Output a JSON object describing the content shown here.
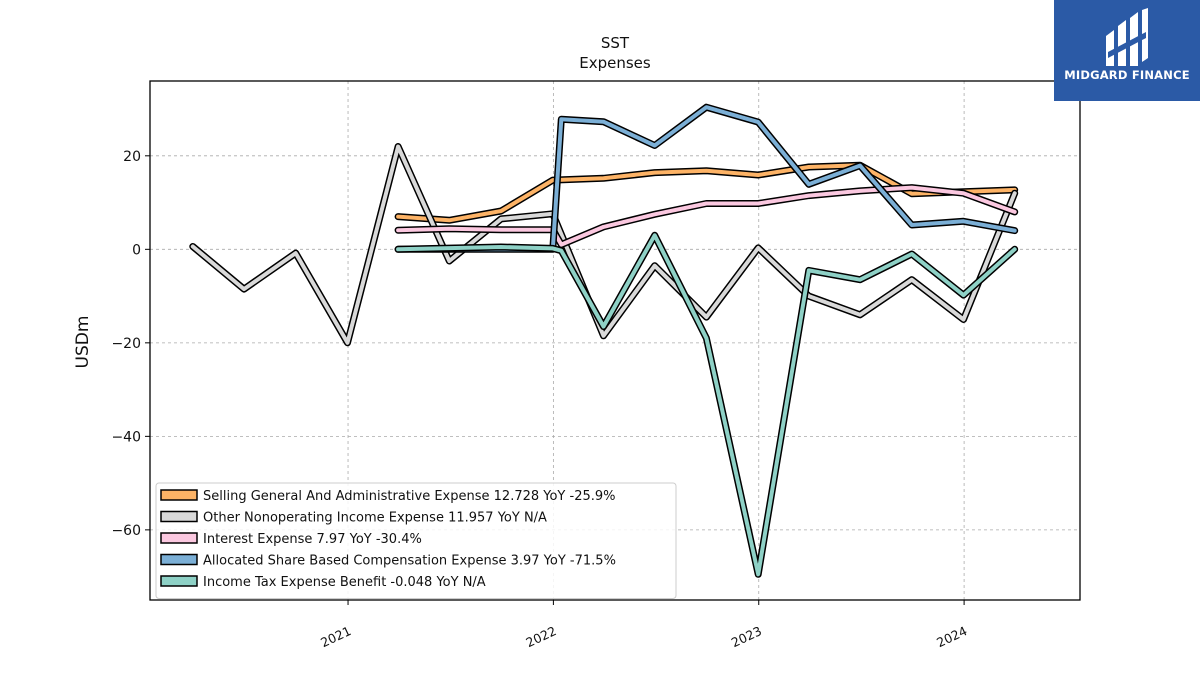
{
  "logo": {
    "name": "MIDGARD FINANCE",
    "icon": "midgard-logo-icon"
  },
  "chart_data": {
    "type": "line",
    "title": "SST",
    "subtitle": "Expenses",
    "xlabel": "",
    "ylabel": "USDm",
    "xlim": [
      "2020-01-15",
      "2024-07-25"
    ],
    "ylim": [
      -75,
      36
    ],
    "yticks": [
      20,
      0,
      -20,
      -40,
      -60
    ],
    "ytick_labels": [
      "20",
      "0",
      "−20",
      "−40",
      "−60"
    ],
    "xticks": [
      "2021-01-01",
      "2022-01-01",
      "2023-01-01",
      "2024-01-01"
    ],
    "xtick_labels": [
      "2021",
      "2022",
      "2023",
      "2024"
    ],
    "grid": true,
    "legend_position": "lower-left",
    "series": [
      {
        "name": "Selling General And Administrative Expense",
        "legend": "Selling General And Administrative Expense  12.728 YoY -25.9%",
        "color": "#fdb366",
        "points": [
          [
            "2021-03-31",
            7.0
          ],
          [
            "2021-06-30",
            6.2
          ],
          [
            "2021-09-30",
            8.2
          ],
          [
            "2021-12-31",
            14.8
          ],
          [
            "2022-03-31",
            15.2
          ],
          [
            "2022-06-30",
            16.4
          ],
          [
            "2022-09-30",
            16.8
          ],
          [
            "2022-12-31",
            15.9
          ],
          [
            "2023-03-31",
            17.6
          ],
          [
            "2023-06-30",
            18.0
          ],
          [
            "2023-09-30",
            11.9
          ],
          [
            "2023-12-31",
            12.3
          ],
          [
            "2024-03-31",
            12.7
          ]
        ]
      },
      {
        "name": "Other Nonoperating Income Expense",
        "legend": "Other Nonoperating Income Expense  11.957 YoY N/A",
        "color": "#d9d9d9",
        "points": [
          [
            "2020-03-31",
            0.6
          ],
          [
            "2020-06-30",
            -8.5
          ],
          [
            "2020-09-30",
            -0.8
          ],
          [
            "2020-12-31",
            -20.0
          ],
          [
            "2021-03-31",
            22.0
          ],
          [
            "2021-06-30",
            -2.5
          ],
          [
            "2021-09-30",
            6.5
          ],
          [
            "2021-12-31",
            7.6
          ],
          [
            "2022-03-31",
            -18.5
          ],
          [
            "2022-06-30",
            -3.5
          ],
          [
            "2022-09-30",
            -14.5
          ],
          [
            "2022-12-31",
            0.3
          ],
          [
            "2023-03-31",
            -10.0
          ],
          [
            "2023-06-30",
            -14.0
          ],
          [
            "2023-09-30",
            -6.5
          ],
          [
            "2023-12-31",
            -15.0
          ],
          [
            "2024-03-31",
            12.0
          ]
        ]
      },
      {
        "name": "Interest Expense",
        "legend": "Interest Expense  7.97 YoY -30.4%",
        "color": "#fbc8e0",
        "points": [
          [
            "2021-03-31",
            4.1
          ],
          [
            "2021-06-30",
            4.4
          ],
          [
            "2021-09-30",
            4.2
          ],
          [
            "2021-12-31",
            4.2
          ],
          [
            "2022-01-15",
            1.0
          ],
          [
            "2022-03-31",
            4.8
          ],
          [
            "2022-06-30",
            7.5
          ],
          [
            "2022-09-30",
            9.8
          ],
          [
            "2022-12-31",
            9.8
          ],
          [
            "2023-03-31",
            11.5
          ],
          [
            "2023-06-30",
            12.5
          ],
          [
            "2023-09-30",
            13.2
          ],
          [
            "2023-12-31",
            12.0
          ],
          [
            "2024-03-31",
            8.0
          ]
        ]
      },
      {
        "name": "Allocated Share Based Compensation Expense",
        "legend": "Allocated Share Based Compensation Expense  3.97 YoY -71.5%",
        "color": "#7bafd6",
        "points": [
          [
            "2021-03-31",
            0.0
          ],
          [
            "2021-12-31",
            0.0
          ],
          [
            "2022-01-15",
            27.8
          ],
          [
            "2022-03-31",
            27.3
          ],
          [
            "2022-06-30",
            22.2
          ],
          [
            "2022-09-30",
            30.4
          ],
          [
            "2022-12-31",
            27.2
          ],
          [
            "2023-03-31",
            13.9
          ],
          [
            "2023-06-30",
            17.9
          ],
          [
            "2023-09-30",
            5.2
          ],
          [
            "2023-12-31",
            6.0
          ],
          [
            "2024-03-31",
            4.0
          ]
        ]
      },
      {
        "name": "Income Tax Expense Benefit",
        "legend": "Income Tax Expense Benefit  -0.048 YoY N/A",
        "color": "#8ed1c6",
        "points": [
          [
            "2021-03-31",
            0.0
          ],
          [
            "2021-09-30",
            0.5
          ],
          [
            "2021-12-31",
            0.2
          ],
          [
            "2022-01-15",
            -0.3
          ],
          [
            "2022-03-31",
            -16.5
          ],
          [
            "2022-06-30",
            3.0
          ],
          [
            "2022-09-30",
            -19.0
          ],
          [
            "2022-12-31",
            -69.5
          ],
          [
            "2023-03-31",
            -4.5
          ],
          [
            "2023-06-30",
            -6.5
          ],
          [
            "2023-09-30",
            -1.0
          ],
          [
            "2023-12-31",
            -9.8
          ],
          [
            "2024-03-31",
            0.0
          ]
        ]
      }
    ]
  }
}
